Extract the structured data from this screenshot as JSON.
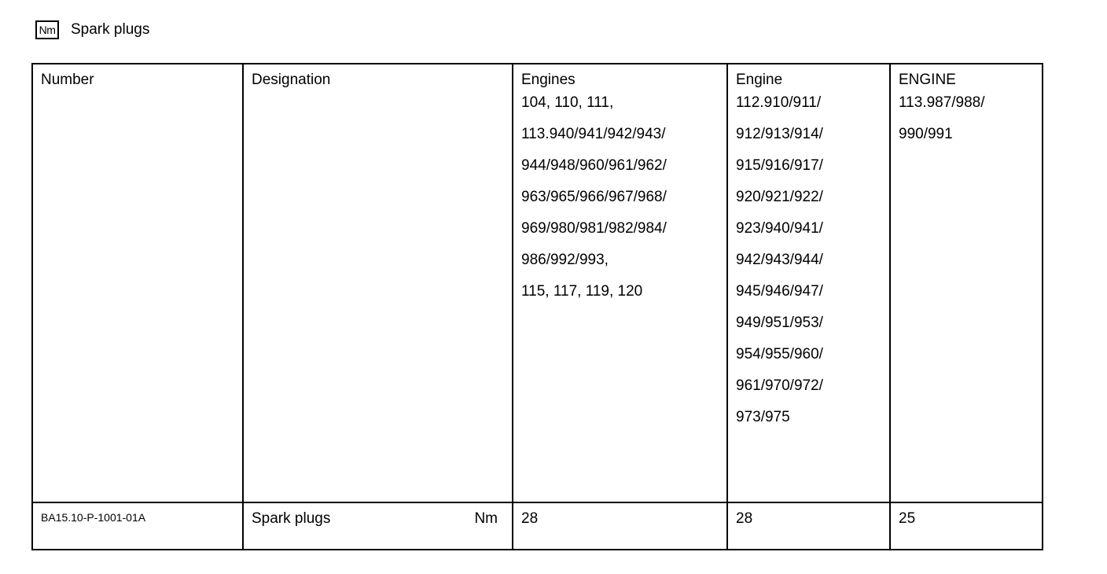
{
  "page": {
    "title": "Spark plugs",
    "title_icon_label": "Nm"
  },
  "table": {
    "headers": {
      "number": "Number",
      "designation": "Designation",
      "engines_group1": {
        "title": "Engines",
        "lines": [
          "104, 110, 111,",
          "113.940/941/942/943/",
          "944/948/960/961/962/",
          "963/965/966/967/968/",
          "969/980/981/982/984/",
          "986/992/993,",
          "115, 117, 119, 120"
        ]
      },
      "engines_group2": {
        "title": "Engine",
        "lines": [
          "112.910/911/",
          "912/913/914/",
          "915/916/917/",
          "920/921/922/",
          "923/940/941/",
          "942/943/944/",
          "945/946/947/",
          "949/951/953/",
          "954/955/960/",
          "961/970/972/",
          "973/975"
        ]
      },
      "engines_group3": {
        "title": "ENGINE",
        "lines": [
          "113.987/988/",
          "990/991"
        ]
      }
    },
    "row": {
      "number": "BA15.10-P-1001-01A",
      "designation": "Spark plugs",
      "unit": "Nm",
      "value_group1": "28",
      "value_group2": "28",
      "value_group3": "25"
    }
  }
}
